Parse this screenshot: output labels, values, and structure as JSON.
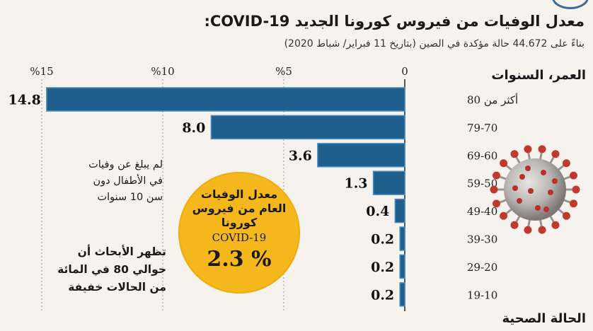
{
  "title": "معدل الوفيات من فيروس كورونا الجديد COVID-19:",
  "subtitle": "بناءً على 44.672 حالة مؤكدة في الصين (بتاريخ 11 فبراير/ شباط 2020)",
  "section_age": "العمر، السنوات",
  "section_health": "الحالة الصحية",
  "note_children": [
    "لم يبلغ عن وفيات",
    "في الأطفال دون",
    "سن 10 سنوات"
  ],
  "note_mild": [
    "تظهر الأبحاث أن",
    "حوالي 80 في المائة",
    "من الحالات خفيفة"
  ],
  "overall": {
    "label_lines": [
      "معدل الوفيات",
      "العام من فيروس",
      "كورونا"
    ],
    "code": "COVID-19",
    "value": "2.3 %"
  },
  "colors": {
    "bar": "#1f5f8e",
    "bar_edge": "#4d8fbf",
    "circle": "#f5b81c",
    "background": "#f6f3ee"
  },
  "icons": {
    "virus": "coronavirus-illustration",
    "logo": "publisher-logo"
  },
  "chart_data": {
    "type": "bar",
    "orientation": "horizontal",
    "direction": "right-to-left",
    "categories": [
      "أكثر من 80",
      "79-70",
      "69-60",
      "59-50",
      "49-40",
      "39-30",
      "29-20",
      "19-10"
    ],
    "values": [
      14.8,
      8.0,
      3.6,
      1.3,
      0.4,
      0.2,
      0.2,
      0.2
    ],
    "value_labels": [
      "14.8",
      "8.0",
      "3.6",
      "1.3",
      "0.4",
      "0.2",
      "0.2",
      "0.2"
    ],
    "xticks": [
      {
        "value": 0,
        "label": "0"
      },
      {
        "value": 5,
        "label": "%5"
      },
      {
        "value": 10,
        "label": "%10"
      },
      {
        "value": 15,
        "label": "%15"
      }
    ],
    "xlim": [
      0,
      15
    ],
    "xlabel": "",
    "ylabel": "العمر، السنوات",
    "grid": "dashed vertical"
  }
}
